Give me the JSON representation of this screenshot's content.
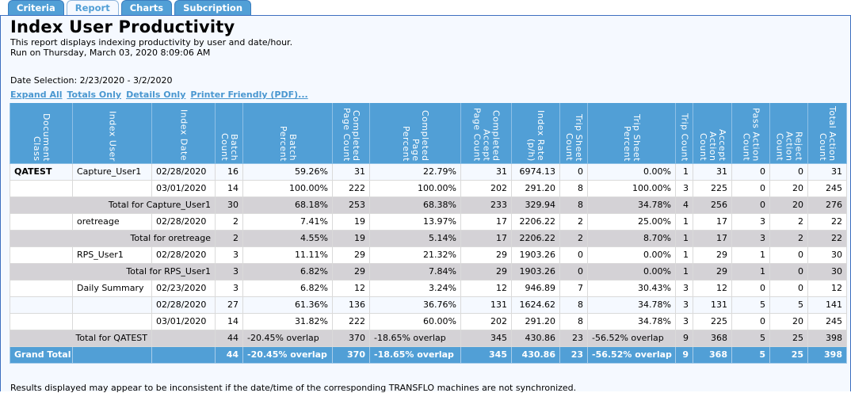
{
  "tabs": [
    {
      "label": "Criteria"
    },
    {
      "label": "Report",
      "active": true
    },
    {
      "label": "Charts"
    },
    {
      "label": "Subcription"
    }
  ],
  "title": "Index User Productivity",
  "description": "This report displays indexing productivity by user and date/hour.",
  "run_on": "Run on Thursday, March 03, 2020 8:09:06 AM",
  "date_selection": "Date Selection: 2/23/2020 - 3/2/2020",
  "links": [
    "Expand All",
    "Totals Only",
    "Details Only",
    "Printer Friendly (PDF)..."
  ],
  "columns": [
    "Document Class",
    "Index User",
    "Index Date",
    "Batch Count",
    "Batch Percent",
    "Completed Page Count",
    "Completed Page Percent",
    "Completed Accept Page Count",
    "Index Rate (p/h)",
    "Trip Sheet Count",
    "Trip Sheet Percent",
    "Trip Count",
    "Accept Action Count",
    "Pass Action Count",
    "Reject Action Count",
    "Total Action Count"
  ],
  "rows": [
    {
      "type": "alt",
      "cells": [
        "QATEST",
        "Capture_User1",
        "02/28/2020",
        "16",
        "59.26%",
        "31",
        "22.79%",
        "31",
        "6974.13",
        "0",
        "0.00%",
        "1",
        "31",
        "0",
        "0",
        "31"
      ]
    },
    {
      "type": "d",
      "cells": [
        "",
        "",
        "03/01/2020",
        "14",
        "100.00%",
        "222",
        "100.00%",
        "202",
        "291.20",
        "8",
        "100.00%",
        "3",
        "225",
        "0",
        "20",
        "245"
      ]
    },
    {
      "type": "t",
      "label": "Total for Capture_User1",
      "cells": [
        "30",
        "68.18%",
        "253",
        "68.38%",
        "233",
        "329.94",
        "8",
        "34.78%",
        "4",
        "256",
        "0",
        "20",
        "276"
      ]
    },
    {
      "type": "d",
      "cells": [
        "",
        "oretreage",
        "02/28/2020",
        "2",
        "7.41%",
        "19",
        "13.97%",
        "17",
        "2206.22",
        "2",
        "25.00%",
        "1",
        "17",
        "3",
        "2",
        "22"
      ]
    },
    {
      "type": "t",
      "label": "Total for oretreage",
      "cells": [
        "2",
        "4.55%",
        "19",
        "5.14%",
        "17",
        "2206.22",
        "2",
        "8.70%",
        "1",
        "17",
        "3",
        "2",
        "22"
      ]
    },
    {
      "type": "d",
      "cells": [
        "",
        "RPS_User1",
        "02/28/2020",
        "3",
        "11.11%",
        "29",
        "21.32%",
        "29",
        "1903.26",
        "0",
        "0.00%",
        "1",
        "29",
        "1",
        "0",
        "30"
      ]
    },
    {
      "type": "t",
      "label": "Total for RPS_User1",
      "cells": [
        "3",
        "6.82%",
        "29",
        "7.84%",
        "29",
        "1903.26",
        "0",
        "0.00%",
        "1",
        "29",
        "1",
        "0",
        "30"
      ]
    },
    {
      "type": "d",
      "cells": [
        "",
        "Daily Summary",
        "02/23/2020",
        "3",
        "6.82%",
        "12",
        "3.24%",
        "12",
        "946.89",
        "7",
        "30.43%",
        "3",
        "12",
        "0",
        "0",
        "12"
      ]
    },
    {
      "type": "alt",
      "cells": [
        "",
        "",
        "02/28/2020",
        "27",
        "61.36%",
        "136",
        "36.76%",
        "131",
        "1624.62",
        "8",
        "34.78%",
        "3",
        "131",
        "5",
        "5",
        "141"
      ]
    },
    {
      "type": "d",
      "cells": [
        "",
        "",
        "03/01/2020",
        "14",
        "31.82%",
        "222",
        "60.00%",
        "202",
        "291.20",
        "8",
        "34.78%",
        "3",
        "225",
        "0",
        "20",
        "245"
      ]
    },
    {
      "type": "q",
      "label": "Total for QATEST",
      "cells": [
        "",
        "44",
        "-20.45% overlap",
        "370",
        "-18.65% overlap",
        "345",
        "430.86",
        "23",
        "-56.52% overlap",
        "9",
        "368",
        "5",
        "25",
        "398"
      ]
    },
    {
      "type": "g",
      "label": "Grand Total",
      "cells": [
        "",
        "",
        "44",
        "-20.45% overlap",
        "370",
        "-18.65% overlap",
        "345",
        "430.86",
        "23",
        "-56.52% overlap",
        "9",
        "368",
        "5",
        "25",
        "398"
      ]
    }
  ],
  "footer": "Results displayed may appear to be inconsistent if the date/time of the corresponding TRANSFLO machines are not synchronized.",
  "colors": {
    "header": "#519fd6",
    "total_row": "#d4d2d6",
    "link": "#4a97d0"
  }
}
